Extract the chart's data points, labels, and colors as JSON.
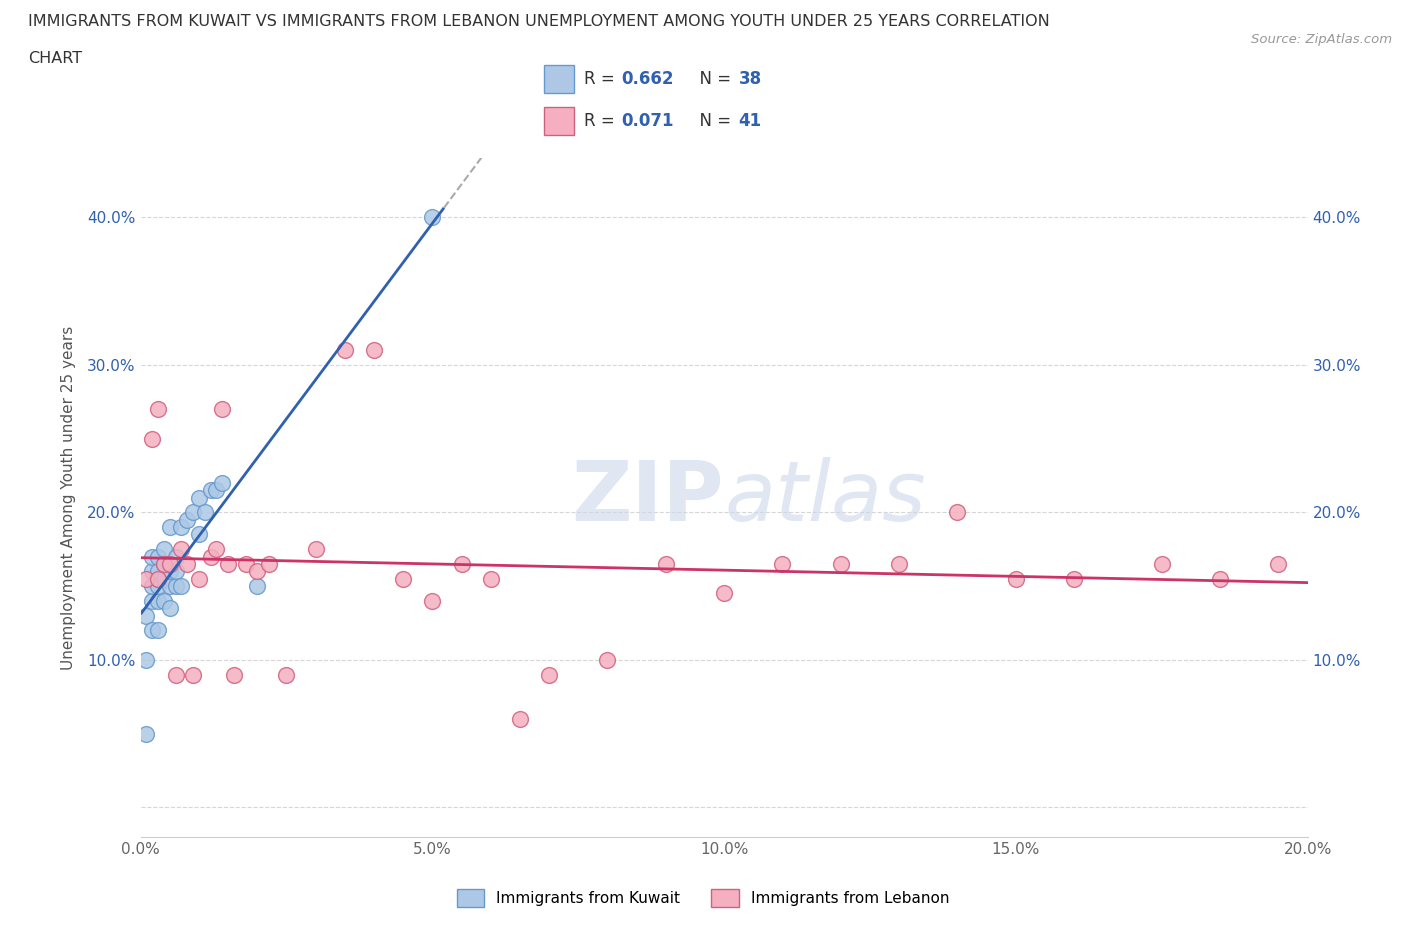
{
  "title_line1": "IMMIGRANTS FROM KUWAIT VS IMMIGRANTS FROM LEBANON UNEMPLOYMENT AMONG YOUTH UNDER 25 YEARS CORRELATION",
  "title_line2": "CHART",
  "source": "Source: ZipAtlas.com",
  "ylabel": "Unemployment Among Youth under 25 years",
  "xlim": [
    0.0,
    0.2
  ],
  "ylim": [
    -0.02,
    0.44
  ],
  "yticks": [
    0.0,
    0.1,
    0.2,
    0.3,
    0.4
  ],
  "xticks": [
    0.0,
    0.05,
    0.1,
    0.15,
    0.2
  ],
  "xtick_labels": [
    "0.0%",
    "5.0%",
    "10.0%",
    "15.0%",
    "20.0%"
  ],
  "ytick_labels": [
    "",
    "10.0%",
    "20.0%",
    "30.0%",
    "40.0%"
  ],
  "kuwait_color": "#adc8e6",
  "kuwait_edge": "#6699cc",
  "lebanon_color": "#f5afc0",
  "lebanon_edge": "#d06080",
  "kuwait_R": 0.662,
  "kuwait_N": 38,
  "lebanon_R": 0.071,
  "lebanon_N": 41,
  "kuwait_line_color": "#3060b0",
  "lebanon_line_color": "#cc3366",
  "text_color": "#3060b0",
  "background_color": "#ffffff",
  "kuwait_x": [
    0.001,
    0.001,
    0.001,
    0.002,
    0.002,
    0.002,
    0.002,
    0.002,
    0.003,
    0.003,
    0.003,
    0.003,
    0.003,
    0.003,
    0.004,
    0.004,
    0.004,
    0.004,
    0.005,
    0.005,
    0.005,
    0.005,
    0.005,
    0.006,
    0.006,
    0.006,
    0.007,
    0.007,
    0.008,
    0.009,
    0.01,
    0.01,
    0.011,
    0.012,
    0.013,
    0.014,
    0.02,
    0.05
  ],
  "kuwait_y": [
    0.05,
    0.1,
    0.13,
    0.12,
    0.14,
    0.15,
    0.16,
    0.17,
    0.12,
    0.14,
    0.15,
    0.155,
    0.16,
    0.17,
    0.14,
    0.155,
    0.165,
    0.175,
    0.135,
    0.15,
    0.16,
    0.165,
    0.19,
    0.15,
    0.16,
    0.17,
    0.15,
    0.19,
    0.195,
    0.2,
    0.185,
    0.21,
    0.2,
    0.215,
    0.215,
    0.22,
    0.15,
    0.4
  ],
  "lebanon_x": [
    0.001,
    0.002,
    0.003,
    0.003,
    0.004,
    0.005,
    0.006,
    0.007,
    0.008,
    0.009,
    0.01,
    0.012,
    0.013,
    0.014,
    0.015,
    0.016,
    0.018,
    0.02,
    0.022,
    0.025,
    0.03,
    0.035,
    0.04,
    0.045,
    0.05,
    0.055,
    0.06,
    0.065,
    0.07,
    0.08,
    0.09,
    0.1,
    0.11,
    0.12,
    0.13,
    0.14,
    0.15,
    0.16,
    0.175,
    0.185,
    0.195
  ],
  "lebanon_y": [
    0.155,
    0.25,
    0.155,
    0.27,
    0.165,
    0.165,
    0.09,
    0.175,
    0.165,
    0.09,
    0.155,
    0.17,
    0.175,
    0.27,
    0.165,
    0.09,
    0.165,
    0.16,
    0.165,
    0.09,
    0.175,
    0.31,
    0.31,
    0.155,
    0.14,
    0.165,
    0.155,
    0.06,
    0.09,
    0.1,
    0.165,
    0.145,
    0.165,
    0.165,
    0.165,
    0.2,
    0.155,
    0.155,
    0.165,
    0.155,
    0.165
  ]
}
